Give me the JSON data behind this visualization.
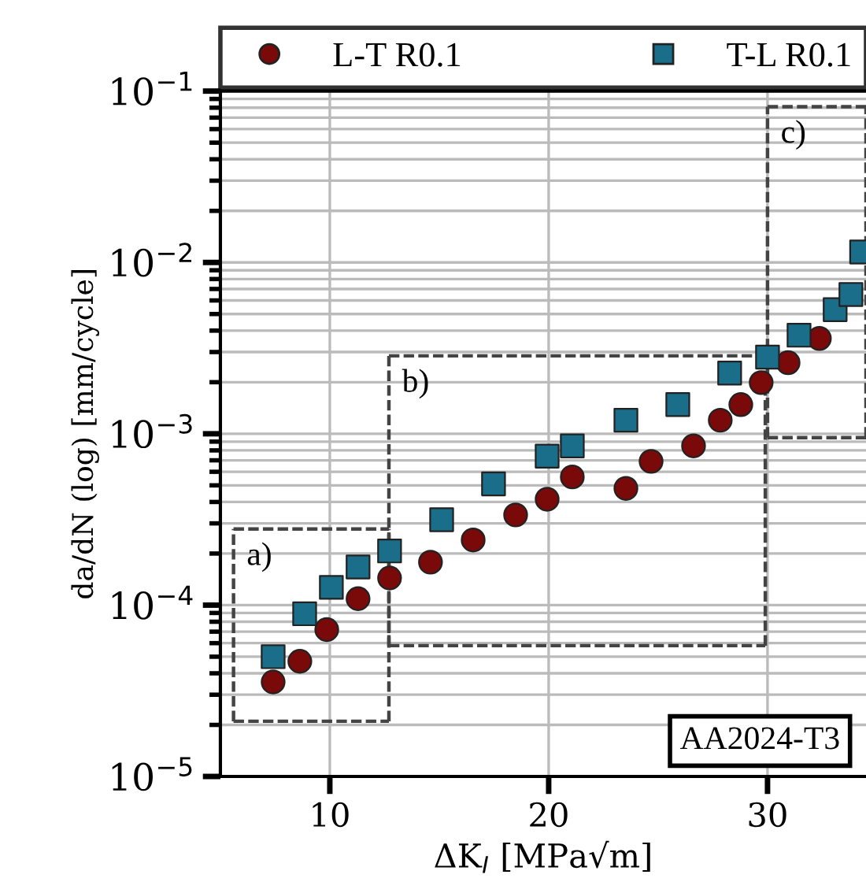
{
  "chart_data": {
    "type": "scatter",
    "xlabel": "ΔK$_{I}$ [MPa√m]",
    "ylabel": "da/dN (log) [mm/cycle]",
    "log": "y",
    "grid": true,
    "legend": "top",
    "xlim": [
      5,
      34.5
    ],
    "xticks": [
      10,
      20,
      30
    ],
    "ylim": [
      1e-05,
      0.1
    ],
    "yticks": [
      {
        "value": 1e-05,
        "label": "10$^{−5}$"
      },
      {
        "value": 0.0001,
        "label": "10$^{−4}$"
      },
      {
        "value": 0.001,
        "label": "10$^{−3}$"
      },
      {
        "value": 0.01,
        "label": "10$^{−2}$"
      },
      {
        "value": 0.1,
        "label": "10$^{−1}$"
      }
    ],
    "series": [
      {
        "name": "L-T R0.1",
        "color": "#7a0a0a",
        "marker": "circle",
        "x": [
          7.41,
          8.63,
          9.86,
          11.29,
          12.73,
          14.6,
          16.55,
          18.49,
          19.93,
          21.08,
          23.53,
          24.68,
          26.62,
          27.84,
          28.78,
          29.71,
          30.94,
          32.37
        ],
        "values": [
          3.56e-05,
          4.7e-05,
          7.2e-05,
          0.000109,
          0.000144,
          0.000178,
          0.00024,
          0.000336,
          0.000415,
          0.00056,
          0.00048,
          0.00069,
          0.00085,
          0.0012,
          0.00148,
          0.00199,
          0.0026,
          0.0036
        ]
      },
      {
        "name": "T-L R0.1",
        "color": "#1a6e8a",
        "marker": "square",
        "x": [
          7.41,
          8.85,
          10.07,
          11.29,
          12.73,
          15.11,
          17.48,
          19.93,
          21.08,
          23.53,
          25.9,
          28.27,
          30.0,
          31.44,
          33.09,
          33.81,
          34.3
        ],
        "values": [
          5e-05,
          8.9e-05,
          0.000127,
          0.000167,
          0.000207,
          0.000315,
          0.00051,
          0.00074,
          0.00085,
          0.0012,
          0.00148,
          0.00226,
          0.0028,
          0.00376,
          0.0053,
          0.0065,
          0.0115
        ]
      },
      {
        "type": "line",
        "line_style": "dashed",
        "marker": "none",
        "color": "#444444",
        "x": [
          5.6,
          12.7
        ],
        "values": [
          0.000278,
          0.000278
        ]
      },
      {
        "type": "line",
        "line_style": "dashed",
        "marker": "none",
        "color": "#444444",
        "x": [
          5.6,
          12.7
        ],
        "values": [
          2.1e-05,
          2.1e-05
        ]
      },
      {
        "type": "line",
        "line_style": "dashed",
        "marker": "none",
        "color": "#444444",
        "x": [
          5.6,
          5.6
        ],
        "values": [
          2.1e-05,
          0.000278
        ]
      },
      {
        "type": "line",
        "line_style": "dashed",
        "marker": "none",
        "color": "#444444",
        "x": [
          12.7,
          12.7
        ],
        "values": [
          2.1e-05,
          0.000278
        ]
      },
      {
        "type": "line",
        "line_style": "dashed",
        "marker": "none",
        "color": "#444444",
        "x": [
          12.7,
          29.9
        ],
        "values": [
          0.00285,
          0.00285
        ]
      },
      {
        "type": "line",
        "line_style": "dashed",
        "marker": "none",
        "color": "#444444",
        "x": [
          12.7,
          29.9
        ],
        "values": [
          5.8e-05,
          5.8e-05
        ]
      },
      {
        "type": "line",
        "line_style": "dashed",
        "marker": "none",
        "color": "#444444",
        "x": [
          12.7,
          12.7
        ],
        "values": [
          5.8e-05,
          0.00285
        ]
      },
      {
        "type": "line",
        "line_style": "dashed",
        "marker": "none",
        "color": "#444444",
        "x": [
          29.9,
          29.9
        ],
        "values": [
          5.8e-05,
          0.00285
        ]
      },
      {
        "type": "line",
        "line_style": "dashed",
        "marker": "none",
        "color": "#444444",
        "x": [
          30,
          34.5
        ],
        "values": [
          0.081,
          0.081
        ]
      },
      {
        "type": "line",
        "line_style": "dashed",
        "marker": "none",
        "color": "#444444",
        "x": [
          30,
          34.5
        ],
        "values": [
          0.00095,
          0.00095
        ]
      },
      {
        "type": "line",
        "line_style": "dashed",
        "marker": "none",
        "color": "#444444",
        "x": [
          30,
          30
        ],
        "values": [
          0.00095,
          0.081
        ]
      },
      {
        "type": "line",
        "line_style": "dashed",
        "marker": "none",
        "color": "#444444",
        "x": [
          34.5,
          34.5
        ],
        "values": [
          0.00095,
          0.081
        ]
      }
    ],
    "annotations": [
      "a)",
      "b)",
      "c)",
      "AA2024-T3"
    ]
  }
}
